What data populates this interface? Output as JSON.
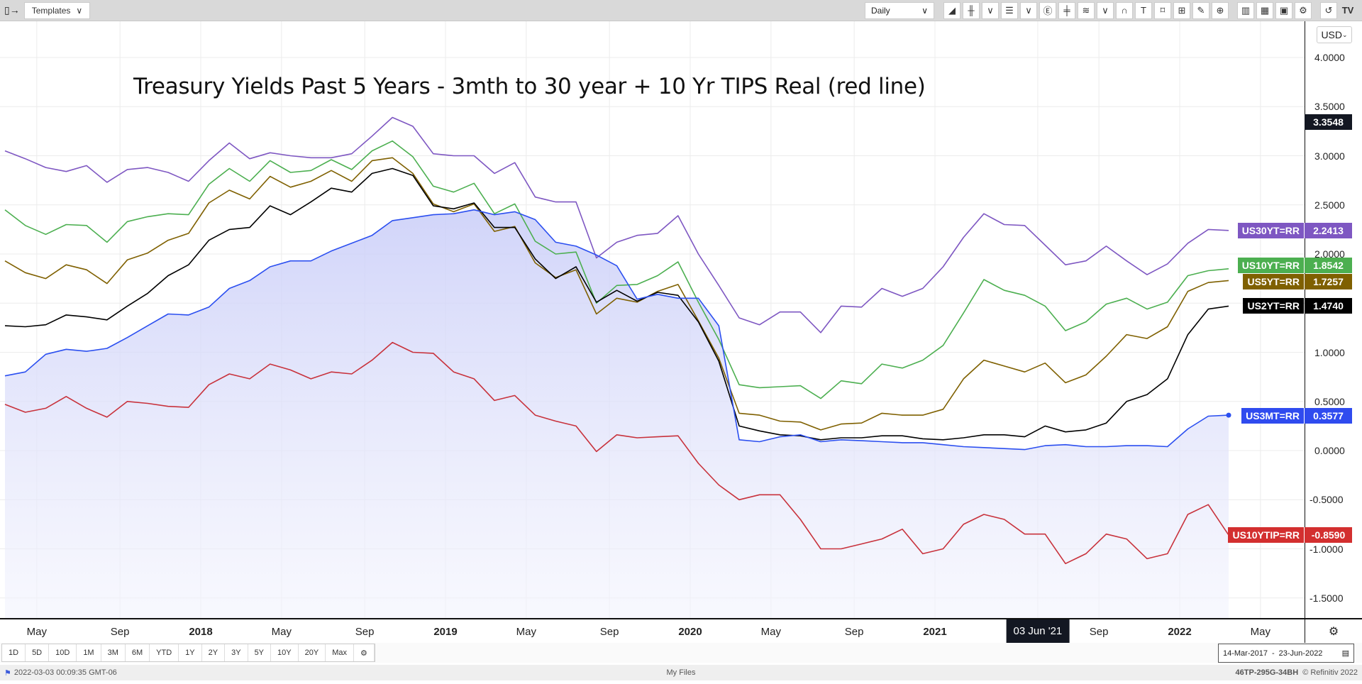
{
  "toolbar": {
    "templates_label": "Templates",
    "interval": "Daily",
    "icons": [
      "area-chart-icon",
      "bar-chart-icon",
      "chevron-down-icon",
      "layout-icon",
      "chevron-down-icon",
      "currency-icon",
      "crosshair-icon",
      "indicators-icon",
      "chevron-down-icon",
      "magnet-icon",
      "text-icon",
      "shape-icon",
      "measure-icon",
      "draw-icon",
      "zoom-icon",
      "compare-icon",
      "table-icon",
      "document-icon",
      "settings-icon",
      "undo-icon",
      "logo-icon"
    ]
  },
  "price_axis": {
    "currency": "USD",
    "crosshair_value": "3.3548"
  },
  "time_axis": {
    "crosshair_label": "03 Jun '21"
  },
  "range_buttons": [
    "1D",
    "5D",
    "10D",
    "1M",
    "3M",
    "6M",
    "YTD",
    "1Y",
    "2Y",
    "3Y",
    "5Y",
    "10Y",
    "20Y",
    "Max"
  ],
  "date_range": {
    "from": "14-Mar-2017",
    "to": "23-Jun-2022"
  },
  "status": {
    "timestamp": "2022-03-03 00:09:35 GMT-06",
    "center": "My Files",
    "code": "46TP-295G-34BH",
    "copyright": "© Refinitiv 2022"
  },
  "chart_data": {
    "type": "line",
    "title": "Treasury Yields Past 5 Years - 3mth to 30 year + 10 Yr TIPS Real (red line)",
    "xlabel": "",
    "ylabel": "",
    "x_start": "2017-03",
    "x_step": "month",
    "ylim": [
      -1.75,
      4.2
    ],
    "y_ticks": [
      "4.0000",
      "3.5000",
      "3.0000",
      "2.5000",
      "2.0000",
      "1.0000",
      "0.5000",
      "0.0000",
      "-0.5000",
      "-1.0000",
      "-1.5000"
    ],
    "y_tick_values": [
      4,
      3.5,
      3,
      2.5,
      2,
      1,
      0.5,
      0,
      -0.5,
      -1,
      -1.5
    ],
    "x_ticks": [
      {
        "label": "May",
        "t": 2017.33
      },
      {
        "label": "Sep",
        "t": 2017.67
      },
      {
        "label": "2018",
        "t": 2018,
        "bold": true
      },
      {
        "label": "May",
        "t": 2018.33
      },
      {
        "label": "Sep",
        "t": 2018.67
      },
      {
        "label": "2019",
        "t": 2019,
        "bold": true
      },
      {
        "label": "May",
        "t": 2019.33
      },
      {
        "label": "Sep",
        "t": 2019.67
      },
      {
        "label": "2020",
        "t": 2020,
        "bold": true
      },
      {
        "label": "May",
        "t": 2020.33
      },
      {
        "label": "Sep",
        "t": 2020.67
      },
      {
        "label": "2021",
        "t": 2021,
        "bold": true
      },
      {
        "label": "Sep",
        "t": 2021.67
      },
      {
        "label": "2022",
        "t": 2022,
        "bold": true
      },
      {
        "label": "May",
        "t": 2022.33
      }
    ],
    "crosshair_t": 2021.42,
    "grid": true,
    "series": [
      {
        "name": "US30YT=RR",
        "last": "2.2413",
        "color": "#7e57c2",
        "values": [
          3.05,
          2.97,
          2.88,
          2.84,
          2.9,
          2.73,
          2.86,
          2.88,
          2.83,
          2.74,
          2.95,
          3.13,
          2.97,
          3.03,
          3.0,
          2.98,
          2.98,
          3.02,
          3.2,
          3.39,
          3.3,
          3.02,
          3.0,
          3.0,
          2.82,
          2.93,
          2.58,
          2.53,
          2.53,
          1.96,
          2.12,
          2.19,
          2.21,
          2.39,
          2.0,
          1.68,
          1.35,
          1.28,
          1.41,
          1.41,
          1.2,
          1.47,
          1.46,
          1.65,
          1.57,
          1.65,
          1.87,
          2.17,
          2.41,
          2.3,
          2.29,
          2.09,
          1.89,
          1.93,
          2.08,
          1.93,
          1.79,
          1.9,
          2.11,
          2.25,
          2.24
        ]
      },
      {
        "name": "US10YT=RR",
        "last": "1.8542",
        "color": "#4caf50",
        "values": [
          2.45,
          2.29,
          2.2,
          2.3,
          2.29,
          2.12,
          2.33,
          2.38,
          2.41,
          2.4,
          2.71,
          2.87,
          2.74,
          2.95,
          2.83,
          2.85,
          2.96,
          2.86,
          3.05,
          3.15,
          2.99,
          2.69,
          2.63,
          2.72,
          2.41,
          2.51,
          2.13,
          2.0,
          2.02,
          1.5,
          1.68,
          1.69,
          1.78,
          1.92,
          1.51,
          1.13,
          0.67,
          0.64,
          0.65,
          0.66,
          0.53,
          0.71,
          0.68,
          0.88,
          0.84,
          0.92,
          1.07,
          1.4,
          1.74,
          1.63,
          1.58,
          1.47,
          1.22,
          1.31,
          1.49,
          1.55,
          1.44,
          1.51,
          1.78,
          1.83,
          1.85
        ]
      },
      {
        "name": "US5YT=RR",
        "last": "1.7257",
        "color": "#7f6000",
        "values": [
          1.93,
          1.81,
          1.75,
          1.89,
          1.84,
          1.7,
          1.94,
          2.01,
          2.14,
          2.21,
          2.52,
          2.65,
          2.56,
          2.79,
          2.68,
          2.74,
          2.85,
          2.74,
          2.95,
          2.98,
          2.82,
          2.51,
          2.43,
          2.51,
          2.23,
          2.28,
          1.91,
          1.76,
          1.84,
          1.39,
          1.55,
          1.51,
          1.62,
          1.69,
          1.32,
          0.94,
          0.38,
          0.36,
          0.3,
          0.29,
          0.21,
          0.27,
          0.28,
          0.38,
          0.36,
          0.36,
          0.42,
          0.73,
          0.92,
          0.86,
          0.8,
          0.89,
          0.69,
          0.77,
          0.96,
          1.18,
          1.14,
          1.26,
          1.62,
          1.71,
          1.73
        ]
      },
      {
        "name": "US2YT=RR",
        "last": "1.4740",
        "color": "#000000",
        "values": [
          1.27,
          1.26,
          1.28,
          1.38,
          1.36,
          1.33,
          1.47,
          1.6,
          1.78,
          1.89,
          2.14,
          2.25,
          2.27,
          2.49,
          2.4,
          2.53,
          2.67,
          2.63,
          2.82,
          2.87,
          2.8,
          2.49,
          2.46,
          2.52,
          2.27,
          2.27,
          1.95,
          1.75,
          1.87,
          1.51,
          1.63,
          1.52,
          1.61,
          1.58,
          1.31,
          0.91,
          0.25,
          0.2,
          0.16,
          0.15,
          0.11,
          0.13,
          0.13,
          0.15,
          0.15,
          0.12,
          0.11,
          0.13,
          0.16,
          0.16,
          0.14,
          0.25,
          0.19,
          0.21,
          0.28,
          0.5,
          0.57,
          0.73,
          1.18,
          1.44,
          1.47
        ]
      },
      {
        "name": "US3MT=RR",
        "last": "0.3577",
        "color": "#2b4ff0",
        "area": true,
        "values": [
          0.76,
          0.8,
          0.98,
          1.03,
          1.01,
          1.04,
          1.15,
          1.27,
          1.39,
          1.38,
          1.46,
          1.65,
          1.73,
          1.87,
          1.93,
          1.93,
          2.03,
          2.11,
          2.19,
          2.34,
          2.37,
          2.4,
          2.41,
          2.45,
          2.4,
          2.43,
          2.35,
          2.12,
          2.08,
          1.99,
          1.88,
          1.54,
          1.59,
          1.55,
          1.55,
          1.27,
          0.11,
          0.09,
          0.14,
          0.16,
          0.09,
          0.11,
          0.1,
          0.09,
          0.08,
          0.08,
          0.06,
          0.04,
          0.03,
          0.02,
          0.01,
          0.05,
          0.06,
          0.04,
          0.04,
          0.05,
          0.05,
          0.04,
          0.22,
          0.35,
          0.36
        ]
      },
      {
        "name": "US10YTIP=RR",
        "last": "-0.8590",
        "color": "#c8323c",
        "values": [
          0.47,
          0.39,
          0.43,
          0.55,
          0.43,
          0.34,
          0.5,
          0.48,
          0.45,
          0.44,
          0.67,
          0.78,
          0.73,
          0.88,
          0.82,
          0.73,
          0.8,
          0.78,
          0.92,
          1.1,
          1.0,
          0.99,
          0.8,
          0.73,
          0.51,
          0.56,
          0.36,
          0.3,
          0.25,
          -0.01,
          0.16,
          0.13,
          0.14,
          0.15,
          -0.13,
          -0.35,
          -0.5,
          -0.45,
          -0.45,
          -0.7,
          -1.0,
          -1.0,
          -0.95,
          -0.9,
          -0.8,
          -1.05,
          -1.0,
          -0.75,
          -0.65,
          -0.7,
          -0.85,
          -0.85,
          -1.15,
          -1.05,
          -0.85,
          -0.9,
          -1.1,
          -1.05,
          -0.65,
          -0.55,
          -0.86
        ]
      }
    ]
  },
  "tag_colors": {
    "US30YT=RR": "#7e57c2",
    "US10YT=RR": "#4caf50",
    "US5YT=RR": "#7f6000",
    "US2YT=RR": "#000000",
    "US3MT=RR": "#2f4bef",
    "US10YTIP=RR": "#d32f2f"
  }
}
